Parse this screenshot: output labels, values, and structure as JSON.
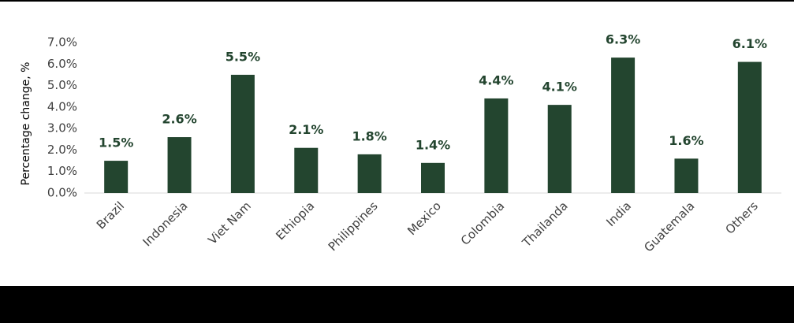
{
  "chart_data": {
    "type": "bar",
    "y_label": "Percentage change, %",
    "categories": [
      "Brazil",
      "Indonesia",
      "Viet Nam",
      "Ethiopia",
      "Philippines",
      "Mexico",
      "Colombia",
      "Thailanda",
      "India",
      "Guatemala",
      "Others"
    ],
    "values": [
      1.5,
      2.6,
      5.5,
      2.1,
      1.8,
      1.4,
      4.4,
      4.1,
      6.3,
      1.6,
      6.1
    ],
    "value_labels": [
      "1.5%",
      "2.6%",
      "5.5%",
      "2.1%",
      "1.8%",
      "1.4%",
      "4.4%",
      "4.1%",
      "6.3%",
      "1.6%",
      "6.1%"
    ],
    "color": "#23452f",
    "ylim": [
      0,
      7
    ],
    "yticks": [
      {
        "value": 0,
        "label": "0.0%"
      },
      {
        "value": 1,
        "label": "1.0%"
      },
      {
        "value": 2,
        "label": "2.0%"
      },
      {
        "value": 3,
        "label": "3.0%"
      },
      {
        "value": 4,
        "label": "4.0%"
      },
      {
        "value": 5,
        "label": "5.0%"
      },
      {
        "value": 6,
        "label": "6.0%"
      },
      {
        "value": 7,
        "label": "7.0%"
      }
    ],
    "grid": false
  }
}
